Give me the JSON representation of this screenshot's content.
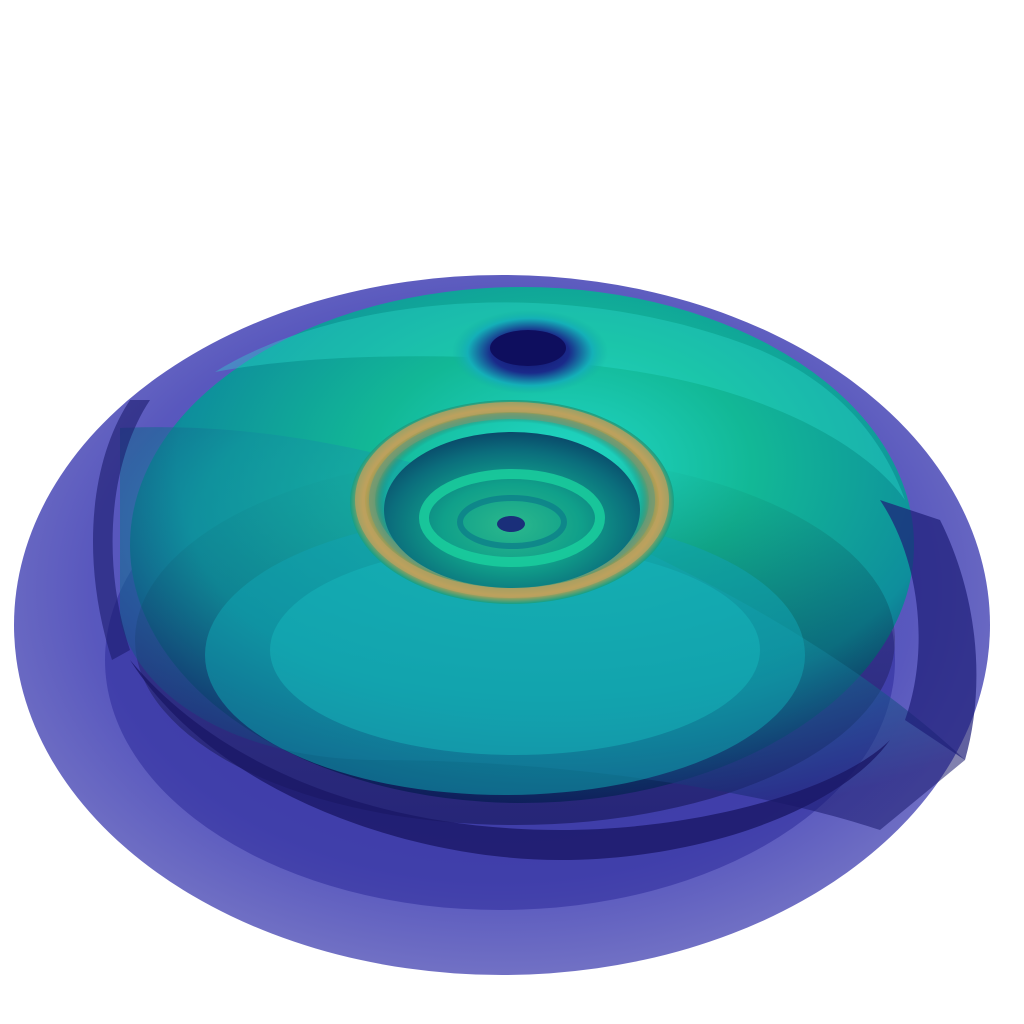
{
  "scene": {
    "subject": "volume-render-torus",
    "background": "#ffffff",
    "colormap": {
      "deep": "#1a1466",
      "low": "#3b3aa8",
      "mid": "#14a3b0",
      "high": "#12b896",
      "peak": "#2ee0d0",
      "hot": "#c9a050"
    },
    "icon": "3d-rendering"
  }
}
